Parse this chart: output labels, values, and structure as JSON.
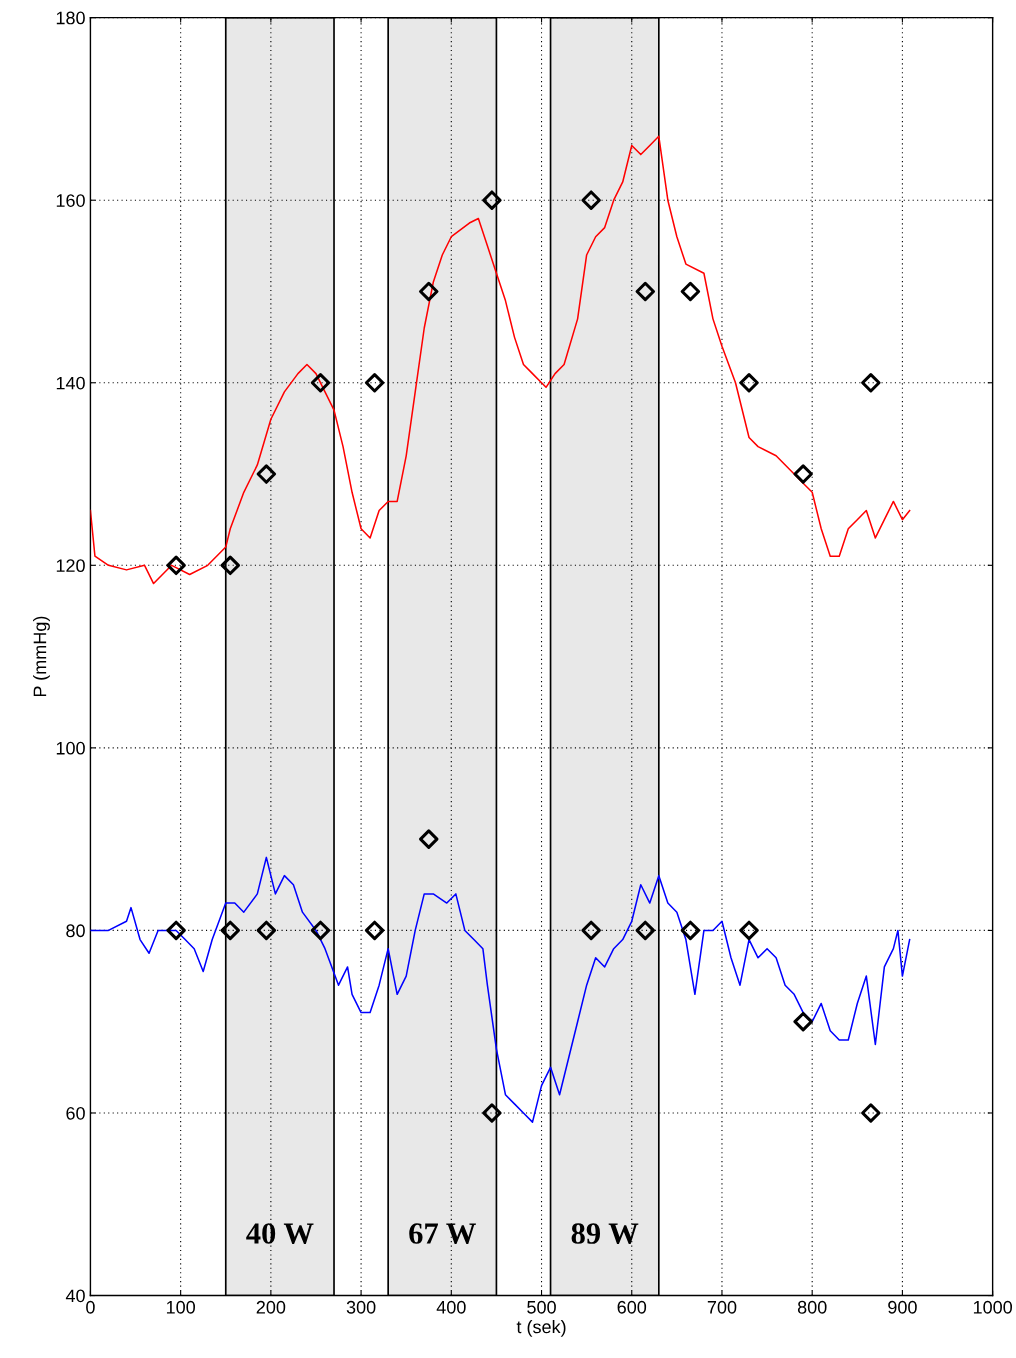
{
  "chart_data": {
    "type": "line",
    "xlabel": "t (sek)",
    "ylabel": "P (mmHg)",
    "xlim": [
      0,
      1000
    ],
    "xticks": [
      0,
      100,
      200,
      300,
      400,
      500,
      600,
      700,
      800,
      900,
      1000
    ],
    "ylim": [
      40,
      180
    ],
    "yticks": [
      40,
      60,
      80,
      100,
      120,
      140,
      160,
      180
    ],
    "grid": true,
    "line_style": "solid",
    "bands": [
      {
        "axis": "x",
        "from": 150,
        "to": 270,
        "label": "40 W",
        "color": "#e8e8e8"
      },
      {
        "axis": "x",
        "from": 330,
        "to": 450,
        "label": "67 W",
        "color": "#e8e8e8"
      },
      {
        "axis": "x",
        "from": 510,
        "to": 630,
        "label": "89 W",
        "color": "#e8e8e8"
      }
    ],
    "series": [
      {
        "color": "#ff0000",
        "marker": "none",
        "x": [
          0,
          5,
          20,
          40,
          60,
          70,
          90,
          110,
          130,
          150,
          155,
          170,
          185,
          200,
          215,
          230,
          240,
          250,
          260,
          270,
          280,
          290,
          300,
          310,
          320,
          330,
          340,
          350,
          360,
          370,
          380,
          390,
          400,
          420,
          430,
          440,
          450,
          460,
          470,
          480,
          490,
          500,
          505,
          515,
          525,
          540,
          550,
          560,
          570,
          580,
          590,
          600,
          610,
          620,
          630,
          640,
          650,
          660,
          680,
          690,
          700,
          715,
          730,
          740,
          760,
          780,
          790,
          800,
          810,
          820,
          830,
          840,
          850,
          860,
          870,
          880,
          890,
          900,
          908
        ],
        "values": [
          126,
          121,
          120,
          119.5,
          120,
          118,
          120,
          119,
          120,
          122,
          124,
          128,
          131,
          136,
          139,
          141,
          142,
          141,
          139,
          137,
          133,
          128,
          124,
          123,
          126,
          127,
          127,
          132,
          139,
          146,
          151,
          154,
          156,
          157.5,
          158,
          155,
          152,
          149,
          145,
          142,
          141,
          140,
          139.5,
          141,
          142,
          147,
          154,
          156,
          157,
          160,
          162,
          166,
          165,
          166,
          167,
          160,
          156,
          153,
          152,
          147,
          144,
          140,
          134,
          133,
          132,
          130,
          129,
          128,
          124,
          121,
          121,
          124,
          125,
          126,
          123,
          125,
          127,
          125,
          126
        ]
      },
      {
        "color": "#0000ff",
        "marker": "none",
        "x": [
          0,
          20,
          40,
          45,
          55,
          65,
          75,
          95,
          105,
          115,
          125,
          135,
          150,
          160,
          170,
          185,
          195,
          205,
          215,
          225,
          235,
          250,
          260,
          275,
          285,
          290,
          300,
          310,
          320,
          330,
          340,
          350,
          360,
          370,
          380,
          395,
          405,
          415,
          425,
          435,
          440,
          450,
          460,
          470,
          480,
          490,
          500,
          510,
          520,
          530,
          540,
          550,
          560,
          570,
          580,
          590,
          600,
          610,
          620,
          630,
          640,
          650,
          660,
          670,
          680,
          690,
          700,
          710,
          720,
          730,
          740,
          750,
          760,
          770,
          780,
          790,
          800,
          810,
          820,
          830,
          840,
          850,
          860,
          870,
          880,
          890,
          895,
          900,
          908
        ],
        "values": [
          80,
          80,
          81,
          82.5,
          79,
          77.5,
          80,
          80,
          79,
          78,
          75.5,
          79,
          83,
          83,
          82,
          84,
          88,
          84,
          86,
          85,
          82,
          80,
          78,
          74,
          76,
          73,
          71,
          71,
          74,
          78,
          73,
          75,
          80,
          84,
          84,
          83,
          84,
          80,
          79,
          78,
          74,
          67,
          62,
          61,
          60,
          59,
          63,
          65,
          62,
          66,
          70,
          74,
          77,
          76,
          78,
          79,
          81,
          85,
          83,
          86,
          83,
          82,
          79,
          73,
          80,
          80,
          81,
          77,
          74,
          79,
          77,
          78,
          77,
          74,
          73,
          71,
          70,
          72,
          69,
          68,
          68,
          72,
          75,
          67.5,
          76,
          78,
          80,
          75,
          79
        ]
      },
      {
        "type": "scatter",
        "color": "#000000",
        "marker": "diamond",
        "x": [
          95,
          155,
          195,
          255,
          315,
          375,
          445,
          555,
          615,
          665,
          730,
          790,
          865
        ],
        "values": [
          120,
          120,
          130,
          140,
          140,
          150,
          160,
          160,
          150,
          150,
          140,
          130,
          140
        ]
      },
      {
        "type": "scatter",
        "color": "#000000",
        "marker": "diamond",
        "x": [
          95,
          155,
          195,
          255,
          315,
          375,
          445,
          555,
          615,
          665,
          730,
          790,
          865
        ],
        "values": [
          80,
          80,
          80,
          80,
          80,
          90,
          60,
          80,
          80,
          80,
          80,
          70,
          60
        ]
      }
    ]
  }
}
